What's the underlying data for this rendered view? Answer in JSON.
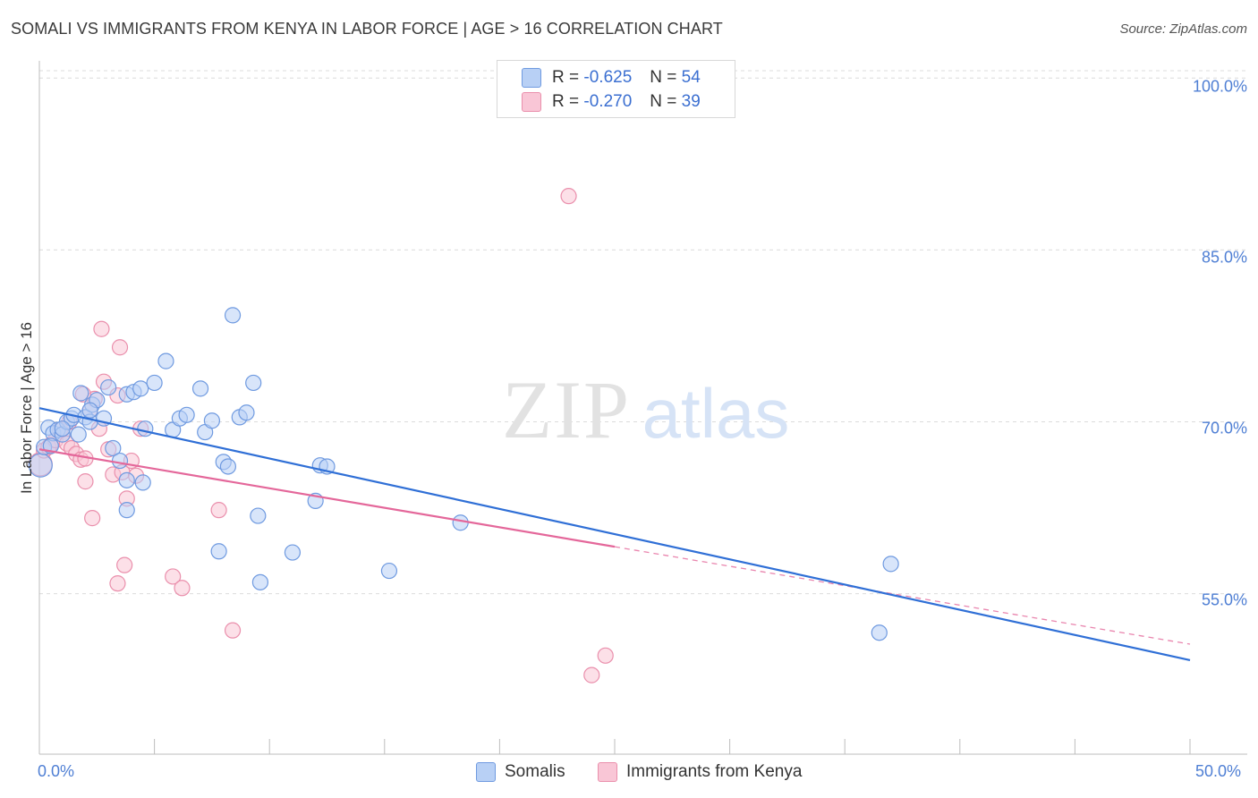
{
  "title": "SOMALI VS IMMIGRANTS FROM KENYA IN LABOR FORCE | AGE > 16 CORRELATION CHART",
  "source": "Source: ZipAtlas.com",
  "watermark": {
    "zip": "ZIP",
    "atlas": "atlas"
  },
  "legend": {
    "rows": [
      {
        "r_label": "R =",
        "r_value": "-0.625",
        "n_label": "N =",
        "n_value": "54"
      },
      {
        "r_label": "R =",
        "r_value": "-0.270",
        "n_label": "N =",
        "n_value": "39"
      }
    ]
  },
  "colors": {
    "somali_fill": "#b8d0f5",
    "somali_stroke": "#6f9ae0",
    "somali_line": "#2f6fd6",
    "kenya_fill": "#f9c6d6",
    "kenya_stroke": "#ea8fac",
    "kenya_line": "#e4679a",
    "grid": "#dcdcdc",
    "tick_text": "#4f7fd4"
  },
  "chart_data": {
    "type": "scatter",
    "title": "SOMALI VS IMMIGRANTS FROM KENYA IN LABOR FORCE | AGE > 16 CORRELATION CHART",
    "xlabel": "",
    "ylabel": "In Labor Force | Age > 16",
    "xlim": [
      0,
      50
    ],
    "ylim": [
      41,
      101.5
    ],
    "x_tick_labels": [
      {
        "value": 0,
        "label": "0.0%"
      },
      {
        "value": 50,
        "label": "50.0%"
      }
    ],
    "y_tick_labels": [
      {
        "value": 100,
        "label": "100.0%"
      },
      {
        "value": 85,
        "label": "85.0%"
      },
      {
        "value": 70,
        "label": "70.0%"
      },
      {
        "value": 55,
        "label": "55.0%"
      }
    ],
    "series": [
      {
        "name": "Somalis",
        "r": -0.625,
        "n": 54,
        "trend": {
          "x": [
            0,
            50
          ],
          "y": [
            71.2,
            49.2
          ]
        },
        "points": [
          [
            0.05,
            66.2
          ],
          [
            0.2,
            67.8
          ],
          [
            0.4,
            69.5
          ],
          [
            0.6,
            69.0
          ],
          [
            0.8,
            69.3
          ],
          [
            1.0,
            68.9
          ],
          [
            1.2,
            70.0
          ],
          [
            1.4,
            70.3
          ],
          [
            1.5,
            70.6
          ],
          [
            1.8,
            72.5
          ],
          [
            2.0,
            70.4
          ],
          [
            2.2,
            70.0
          ],
          [
            2.3,
            71.5
          ],
          [
            2.5,
            71.9
          ],
          [
            2.8,
            70.3
          ],
          [
            3.0,
            73.0
          ],
          [
            3.2,
            67.7
          ],
          [
            3.5,
            66.6
          ],
          [
            3.8,
            72.4
          ],
          [
            4.1,
            72.6
          ],
          [
            4.4,
            72.9
          ],
          [
            4.6,
            69.4
          ],
          [
            5.0,
            73.4
          ],
          [
            5.5,
            75.3
          ],
          [
            5.8,
            69.3
          ],
          [
            6.1,
            70.3
          ],
          [
            6.4,
            70.6
          ],
          [
            7.0,
            72.9
          ],
          [
            7.2,
            69.1
          ],
          [
            7.5,
            70.1
          ],
          [
            8.0,
            66.5
          ],
          [
            8.2,
            66.1
          ],
          [
            8.4,
            79.3
          ],
          [
            8.7,
            70.4
          ],
          [
            9.0,
            70.8
          ],
          [
            9.3,
            73.4
          ],
          [
            3.8,
            64.9
          ],
          [
            4.5,
            64.7
          ],
          [
            3.8,
            62.3
          ],
          [
            7.8,
            58.7
          ],
          [
            9.5,
            61.8
          ],
          [
            9.6,
            56.0
          ],
          [
            11.0,
            58.6
          ],
          [
            12.2,
            66.2
          ],
          [
            12.5,
            66.1
          ],
          [
            12.0,
            63.1
          ],
          [
            15.2,
            57.0
          ],
          [
            18.3,
            61.2
          ],
          [
            37.0,
            57.6
          ],
          [
            36.5,
            51.6
          ],
          [
            1.0,
            69.4
          ],
          [
            2.2,
            71.0
          ],
          [
            0.5,
            67.9
          ],
          [
            1.7,
            68.9
          ]
        ]
      },
      {
        "name": "Immigrants from Kenya",
        "r": -0.27,
        "n": 39,
        "trend": {
          "x": [
            0,
            25
          ],
          "y": [
            67.6,
            59.1
          ]
        },
        "trend_dashed": {
          "x": [
            25,
            50
          ],
          "y": [
            59.1,
            50.6
          ]
        },
        "points": [
          [
            0.05,
            66.3
          ],
          [
            0.2,
            67.5
          ],
          [
            0.4,
            67.8
          ],
          [
            0.5,
            68.0
          ],
          [
            0.7,
            68.4
          ],
          [
            0.9,
            69.3
          ],
          [
            1.0,
            68.9
          ],
          [
            1.2,
            68.1
          ],
          [
            1.4,
            67.7
          ],
          [
            1.6,
            67.2
          ],
          [
            1.8,
            66.7
          ],
          [
            2.0,
            66.8
          ],
          [
            2.2,
            71.0
          ],
          [
            2.4,
            72.0
          ],
          [
            2.6,
            69.4
          ],
          [
            2.8,
            73.5
          ],
          [
            3.0,
            67.6
          ],
          [
            3.2,
            65.4
          ],
          [
            3.4,
            72.3
          ],
          [
            3.6,
            65.6
          ],
          [
            3.8,
            63.3
          ],
          [
            4.0,
            66.6
          ],
          [
            4.2,
            65.3
          ],
          [
            4.4,
            69.4
          ],
          [
            2.7,
            78.1
          ],
          [
            3.5,
            76.5
          ],
          [
            1.9,
            72.4
          ],
          [
            2.3,
            61.6
          ],
          [
            3.7,
            57.5
          ],
          [
            3.4,
            55.9
          ],
          [
            5.8,
            56.5
          ],
          [
            6.2,
            55.5
          ],
          [
            7.8,
            62.3
          ],
          [
            8.4,
            51.8
          ],
          [
            23.0,
            89.7
          ],
          [
            24.6,
            49.6
          ],
          [
            24.0,
            47.9
          ],
          [
            2.0,
            64.8
          ],
          [
            1.3,
            70.0
          ]
        ]
      }
    ]
  },
  "bottom_legend": [
    "Somalis",
    "Immigrants from Kenya"
  ]
}
